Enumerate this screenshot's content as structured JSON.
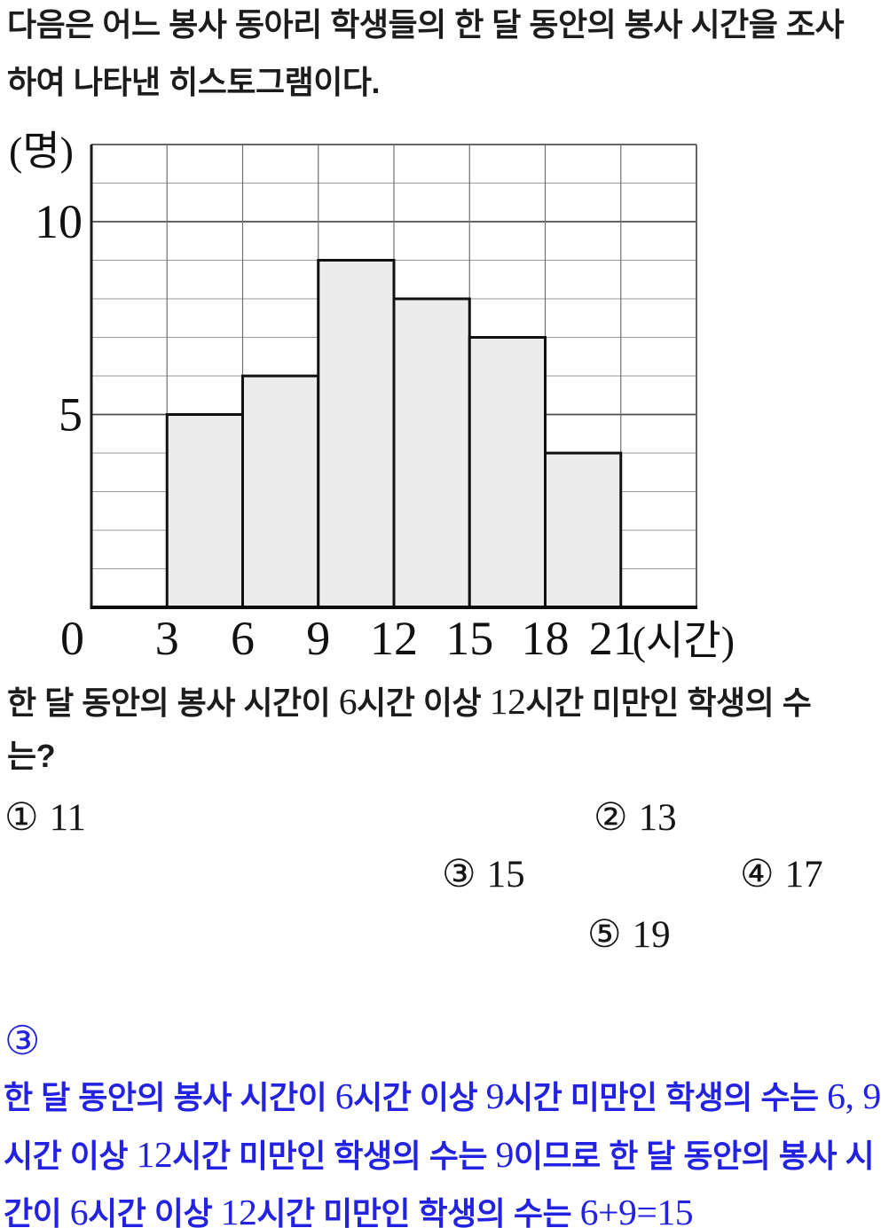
{
  "intro": {
    "line1": "다음은 어느 봉사 동아리 학생들의 한 달 동안의 봉사 시간을 조사",
    "line2": "하여 나타낸 히스토그램이다."
  },
  "chart_data": {
    "type": "bar",
    "subtype": "histogram",
    "xlabel": "(시간)",
    "ylabel": "(명)",
    "x_range": [
      0,
      24
    ],
    "y_range": [
      0,
      12
    ],
    "x_ticks": [
      0,
      3,
      6,
      9,
      12,
      15,
      18,
      21
    ],
    "y_tick_labels": [
      5,
      10
    ],
    "grid": {
      "on": true,
      "x_step": 3,
      "y_step": 1,
      "y_major_step": 5
    },
    "legend": "none",
    "bins": [
      {
        "start": 3,
        "end": 6,
        "count": 5
      },
      {
        "start": 6,
        "end": 9,
        "count": 6
      },
      {
        "start": 9,
        "end": 12,
        "count": 9
      },
      {
        "start": 12,
        "end": 15,
        "count": 8
      },
      {
        "start": 15,
        "end": 18,
        "count": 7
      },
      {
        "start": 18,
        "end": 21,
        "count": 4
      }
    ]
  },
  "question": {
    "line1": "한 달 동안의 봉사 시간이 6시간 이상 12시간 미만인 학생의 수",
    "line2": "는?"
  },
  "choices": [
    {
      "marker": "①",
      "value": "11"
    },
    {
      "marker": "②",
      "value": "13"
    },
    {
      "marker": "③",
      "value": "15"
    },
    {
      "marker": "④",
      "value": "17"
    },
    {
      "marker": "⑤",
      "value": "19"
    }
  ],
  "answer": {
    "marker": "③"
  },
  "explanation": {
    "line1": "한 달 동안의 봉사 시간이 6시간 이상 9시간 미만인 학생의 수는 6, 9",
    "line2": "시간 이상 12시간 미만인 학생의 수는 9이므로 한 달 동안의 봉사 시",
    "line3": "간이 6시간 이상 12시간 미만인 학생의 수는 6+9=15"
  },
  "colors": {
    "text": "#1c1c1c",
    "accent_blue": "#2222e0",
    "bar_fill": "#ececec",
    "bar_border": "#111111",
    "grid_minor": "#9a9a9a",
    "grid_major": "#4d4d4d",
    "grid_vertical": "#707070",
    "frame": "#666666",
    "axis": "#0d0d0d"
  }
}
